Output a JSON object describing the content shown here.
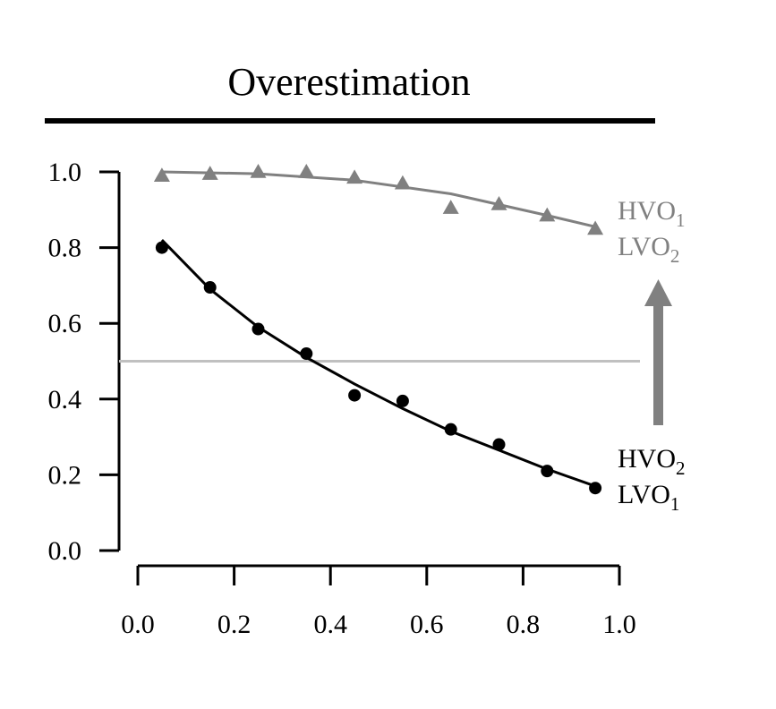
{
  "chart_data": {
    "type": "scatter",
    "title": "Overestimation",
    "xlabel": "",
    "ylabel": "",
    "xlim": [
      0.0,
      1.0
    ],
    "ylim": [
      0.0,
      1.0
    ],
    "x_ticks": [
      "0.0",
      "0.2",
      "0.4",
      "0.6",
      "0.8",
      "1.0"
    ],
    "y_ticks": [
      "0.0",
      "0.2",
      "0.4",
      "0.6",
      "0.8",
      "1.0"
    ],
    "grid": false,
    "reference_line": {
      "y": 0.5,
      "color": "#c0c0c0"
    },
    "series": [
      {
        "label_lines": [
          {
            "base": "HVO",
            "sub": "1"
          },
          {
            "base": "LVO",
            "sub": "2"
          }
        ],
        "marker": "triangle",
        "color": "#808080",
        "x": [
          0.05,
          0.15,
          0.25,
          0.35,
          0.45,
          0.55,
          0.65,
          0.75,
          0.85,
          0.95
        ],
        "y": [
          0.99,
          0.995,
          1.0,
          1.0,
          0.985,
          0.97,
          0.905,
          0.915,
          0.885,
          0.85
        ],
        "fit": [
          [
            0.05,
            1.0
          ],
          [
            0.25,
            0.995
          ],
          [
            0.45,
            0.978
          ],
          [
            0.65,
            0.942
          ],
          [
            0.85,
            0.885
          ],
          [
            0.95,
            0.855
          ]
        ]
      },
      {
        "label_lines": [
          {
            "base": "HVO",
            "sub": "2"
          },
          {
            "base": "LVO",
            "sub": "1"
          }
        ],
        "marker": "circle",
        "color": "#000000",
        "x": [
          0.05,
          0.15,
          0.25,
          0.35,
          0.45,
          0.55,
          0.65,
          0.75,
          0.85,
          0.95
        ],
        "y": [
          0.8,
          0.695,
          0.585,
          0.52,
          0.41,
          0.395,
          0.32,
          0.28,
          0.21,
          0.165
        ],
        "fit": [
          [
            0.05,
            0.82
          ],
          [
            0.15,
            0.69
          ],
          [
            0.25,
            0.59
          ],
          [
            0.35,
            0.51
          ],
          [
            0.45,
            0.44
          ],
          [
            0.55,
            0.375
          ],
          [
            0.65,
            0.315
          ],
          [
            0.75,
            0.265
          ],
          [
            0.85,
            0.215
          ],
          [
            0.95,
            0.17
          ]
        ]
      }
    ],
    "arrow": {
      "direction": "up",
      "color": "#808080"
    }
  }
}
